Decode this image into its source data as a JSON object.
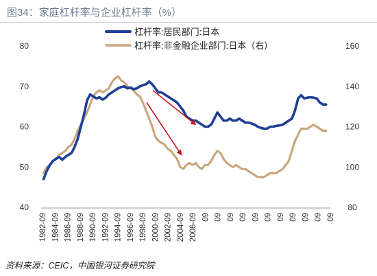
{
  "title": "图34：家庭杠杆率与企业杠杆率（%）",
  "source": "资料来源：CEIC，中国银河证券研究院",
  "colors": {
    "series_household": "#1f3f94",
    "series_corporate": "#c8a77d",
    "arrow": "#c01920",
    "axis_text": "#333333"
  },
  "chart_data": {
    "type": "line",
    "title": "",
    "legend_position": "top-center",
    "grid": false,
    "y_left": {
      "ticks": [
        40,
        50,
        60,
        70,
        80
      ],
      "range": [
        40,
        80
      ]
    },
    "y_right": {
      "ticks": [
        80,
        100,
        120,
        140,
        160
      ],
      "range": [
        80,
        160
      ]
    },
    "x_tick_labels": [
      "1982-09",
      "1984-09",
      "1986-09",
      "1988-09",
      "1990-09",
      "1992-09",
      "1994-09",
      "1996-09",
      "1998-09",
      "2000-09",
      "2002-09",
      "2004-09",
      "2006-09",
      "09",
      "09",
      "09",
      "09",
      "09",
      "09",
      "09",
      "09",
      "09",
      "09",
      "09"
    ],
    "series": [
      {
        "name": "杠杆率:居民部门:日本",
        "axis": "left",
        "values": [
          [
            1982.0,
            47
          ],
          [
            1982.5,
            49
          ],
          [
            1983.0,
            50.5
          ],
          [
            1983.5,
            51.5
          ],
          [
            1984.0,
            52
          ],
          [
            1984.5,
            52.5
          ],
          [
            1985.0,
            51.8
          ],
          [
            1985.5,
            52.5
          ],
          [
            1986.0,
            53
          ],
          [
            1986.5,
            53.5
          ],
          [
            1987.0,
            55
          ],
          [
            1987.5,
            57
          ],
          [
            1988.0,
            60
          ],
          [
            1988.5,
            63
          ],
          [
            1989.0,
            66.5
          ],
          [
            1989.5,
            68
          ],
          [
            1990.0,
            67.5
          ],
          [
            1990.5,
            67
          ],
          [
            1991.0,
            67.3
          ],
          [
            1991.5,
            66.7
          ],
          [
            1992.0,
            67.2
          ],
          [
            1992.5,
            68
          ],
          [
            1993.0,
            68.5
          ],
          [
            1993.5,
            69
          ],
          [
            1994.0,
            69.5
          ],
          [
            1994.5,
            69.8
          ],
          [
            1995.0,
            70
          ],
          [
            1995.5,
            69.5
          ],
          [
            1996.0,
            69.7
          ],
          [
            1996.5,
            69.3
          ],
          [
            1997.0,
            69.5
          ],
          [
            1997.5,
            70
          ],
          [
            1998.0,
            70.3
          ],
          [
            1998.5,
            70.5
          ],
          [
            1999.0,
            71.2
          ],
          [
            1999.5,
            70.5
          ],
          [
            2000.0,
            69.5
          ],
          [
            2000.5,
            68.5
          ],
          [
            2001.0,
            68.5
          ],
          [
            2001.5,
            68
          ],
          [
            2002.0,
            67.5
          ],
          [
            2002.5,
            67
          ],
          [
            2003.0,
            66.5
          ],
          [
            2003.5,
            66
          ],
          [
            2004.0,
            65
          ],
          [
            2004.5,
            64
          ],
          [
            2005.0,
            62.5
          ],
          [
            2005.5,
            62
          ],
          [
            2006.0,
            61.5
          ],
          [
            2006.5,
            61.5
          ],
          [
            2007.0,
            61
          ],
          [
            2007.5,
            60.5
          ],
          [
            2008.0,
            60
          ],
          [
            2008.5,
            60
          ],
          [
            2009.0,
            60.5
          ],
          [
            2009.5,
            62
          ],
          [
            2010.0,
            63.5
          ],
          [
            2010.5,
            62.5
          ],
          [
            2011.0,
            61.5
          ],
          [
            2011.5,
            61.5
          ],
          [
            2012.0,
            62
          ],
          [
            2012.5,
            61.5
          ],
          [
            2013.0,
            61.5
          ],
          [
            2013.5,
            62
          ],
          [
            2014.0,
            61.5
          ],
          [
            2014.5,
            61
          ],
          [
            2015.0,
            61
          ],
          [
            2015.5,
            60.8
          ],
          [
            2016.0,
            60.5
          ],
          [
            2016.5,
            60
          ],
          [
            2017.0,
            59.7
          ],
          [
            2017.5,
            59.5
          ],
          [
            2018.0,
            59.5
          ],
          [
            2018.5,
            60
          ],
          [
            2019.0,
            60
          ],
          [
            2019.5,
            60.2
          ],
          [
            2020.0,
            60.3
          ],
          [
            2020.5,
            60.5
          ],
          [
            2021.0,
            61
          ],
          [
            2021.5,
            61.5
          ],
          [
            2022.0,
            62
          ],
          [
            2022.5,
            64
          ],
          [
            2023.0,
            67
          ],
          [
            2023.5,
            67.8
          ],
          [
            2024.0,
            67
          ],
          [
            2024.5,
            67.2
          ],
          [
            2025.0,
            67.3
          ],
          [
            2025.5,
            67.2
          ],
          [
            2026.0,
            67
          ],
          [
            2026.5,
            66
          ],
          [
            2027.0,
            65.5
          ],
          [
            2027.5,
            65.5
          ]
        ]
      },
      {
        "name": "杠杆率:非金融企业部门:日本（右）",
        "axis": "right",
        "values": [
          [
            1982.0,
            97
          ],
          [
            1982.5,
            100
          ],
          [
            1983.0,
            101
          ],
          [
            1983.5,
            103
          ],
          [
            1984.0,
            104
          ],
          [
            1984.5,
            106
          ],
          [
            1985.0,
            107
          ],
          [
            1985.5,
            108
          ],
          [
            1986.0,
            110
          ],
          [
            1986.5,
            111
          ],
          [
            1987.0,
            114
          ],
          [
            1987.5,
            118
          ],
          [
            1988.0,
            121
          ],
          [
            1988.5,
            124
          ],
          [
            1989.0,
            127
          ],
          [
            1989.5,
            131
          ],
          [
            1990.0,
            135
          ],
          [
            1990.5,
            137
          ],
          [
            1991.0,
            138
          ],
          [
            1991.5,
            137
          ],
          [
            1992.0,
            138
          ],
          [
            1992.5,
            139
          ],
          [
            1993.0,
            142
          ],
          [
            1993.5,
            144
          ],
          [
            1994.0,
            145
          ],
          [
            1994.5,
            143
          ],
          [
            1995.0,
            142
          ],
          [
            1995.5,
            140
          ],
          [
            1996.0,
            139
          ],
          [
            1996.5,
            138
          ],
          [
            1997.0,
            136
          ],
          [
            1997.5,
            135
          ],
          [
            1998.0,
            132
          ],
          [
            1998.5,
            128
          ],
          [
            1999.0,
            124
          ],
          [
            1999.5,
            120
          ],
          [
            2000.0,
            115
          ],
          [
            2000.5,
            113
          ],
          [
            2001.0,
            112
          ],
          [
            2001.5,
            111
          ],
          [
            2002.0,
            109
          ],
          [
            2002.5,
            108
          ],
          [
            2003.0,
            106
          ],
          [
            2003.5,
            104
          ],
          [
            2004.0,
            100
          ],
          [
            2004.5,
            99
          ],
          [
            2005.0,
            101
          ],
          [
            2005.5,
            102
          ],
          [
            2006.0,
            101
          ],
          [
            2006.5,
            102
          ],
          [
            2007.0,
            100
          ],
          [
            2007.5,
            99
          ],
          [
            2008.0,
            101
          ],
          [
            2008.5,
            101
          ],
          [
            2009.0,
            103
          ],
          [
            2009.5,
            106
          ],
          [
            2010.0,
            108
          ],
          [
            2010.5,
            107
          ],
          [
            2011.0,
            104
          ],
          [
            2011.5,
            102
          ],
          [
            2012.0,
            101
          ],
          [
            2012.5,
            100
          ],
          [
            2013.0,
            101
          ],
          [
            2013.5,
            100
          ],
          [
            2014.0,
            99
          ],
          [
            2014.5,
            99
          ],
          [
            2015.0,
            98
          ],
          [
            2015.5,
            97
          ],
          [
            2016.0,
            96
          ],
          [
            2016.5,
            95
          ],
          [
            2017.0,
            95
          ],
          [
            2017.5,
            95
          ],
          [
            2018.0,
            96
          ],
          [
            2018.5,
            97
          ],
          [
            2019.0,
            97
          ],
          [
            2019.5,
            97
          ],
          [
            2020.0,
            98
          ],
          [
            2020.5,
            99
          ],
          [
            2021.0,
            101
          ],
          [
            2021.5,
            103
          ],
          [
            2022.0,
            108
          ],
          [
            2022.5,
            113
          ],
          [
            2023.0,
            116
          ],
          [
            2023.5,
            119
          ],
          [
            2024.0,
            119
          ],
          [
            2024.5,
            119
          ],
          [
            2025.0,
            120
          ],
          [
            2025.5,
            121
          ],
          [
            2026.0,
            120
          ],
          [
            2026.5,
            119
          ],
          [
            2027.0,
            118
          ],
          [
            2027.5,
            118
          ]
        ]
      }
    ],
    "annotations": [
      {
        "type": "arrow",
        "from": [
          1999.6,
          138
        ],
        "to": [
          2006.5,
          121
        ],
        "axis": "right",
        "color": "#c01920"
      },
      {
        "type": "arrow",
        "from": [
          1998.6,
          132
        ],
        "to": [
          2004.2,
          106
        ],
        "axis": "right",
        "color": "#c01920"
      }
    ]
  }
}
